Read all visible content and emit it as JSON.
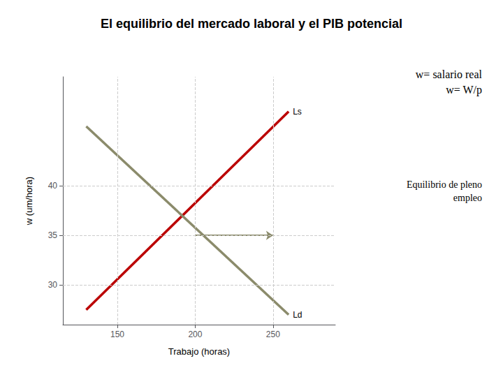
{
  "chart_data": {
    "type": "line",
    "title": "El equilibrio del mercado laboral y el PIB potencial",
    "xlabel": "Trabajo (horas)",
    "ylabel": "w (um/hora)",
    "x": [
      130,
      260
    ],
    "series": [
      {
        "name": "Ls",
        "color": "#bb0000",
        "values": [
          27.5,
          47.5
        ]
      },
      {
        "name": "Ld",
        "color": "#8b8b6b",
        "values": [
          46.0,
          27.0
        ]
      }
    ],
    "xlim": [
      115,
      290
    ],
    "ylim": [
      26,
      51
    ],
    "xticks": [
      150,
      200,
      250
    ],
    "yticks": [
      30,
      35,
      40
    ],
    "grid": true,
    "arrow": {
      "from": [
        200,
        35
      ],
      "to": [
        250,
        35
      ],
      "color": "#8b8b6b"
    },
    "annotations": [
      {
        "text": "w= salario real\nw= W/p"
      },
      {
        "text": "Equilibrio de pleno\nempleo"
      }
    ]
  }
}
